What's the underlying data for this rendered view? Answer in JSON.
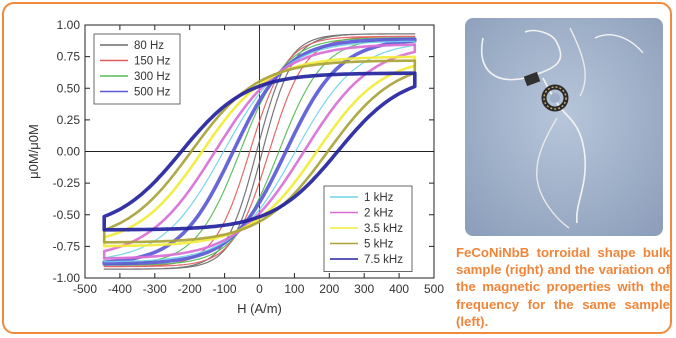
{
  "chart_data": {
    "type": "line",
    "xlabel": "H (A/m)",
    "ylabel": "μ0M/μ0M",
    "xlim": [
      -500,
      500
    ],
    "ylim": [
      -1.0,
      1.0
    ],
    "xticks": [
      -500,
      -400,
      -300,
      -200,
      -100,
      0,
      100,
      200,
      300,
      400,
      500
    ],
    "yticks": [
      1.0,
      0.75,
      0.5,
      0.25,
      0.0,
      -0.25,
      -0.5,
      -0.75,
      -1.0
    ],
    "ytick_labels": [
      "1.00",
      "0.75",
      "0.50",
      "0.25",
      "0.00",
      "-0.25",
      "-0.50",
      "-0.75",
      "-1.00"
    ],
    "grid": false,
    "legends": [
      {
        "placement": "top-left",
        "entries": [
          "80 Hz",
          "150 Hz",
          "300 Hz",
          "500 Hz"
        ]
      },
      {
        "placement": "bottom-right",
        "entries": [
          "1 kHz",
          "2 kHz",
          "3.5 kHz",
          "5 kHz",
          "7.5 kHz"
        ]
      }
    ],
    "series": [
      {
        "name": "80 Hz",
        "color": "#6b6b6b",
        "Hmax": 445,
        "Mmax": 0.93,
        "Hc": 10,
        "Mr": 0.1
      },
      {
        "name": "150 Hz",
        "color": "#e35a5a",
        "Hmax": 445,
        "Mmax": 0.91,
        "Hc": 35,
        "Mr": 0.28
      },
      {
        "name": "300 Hz",
        "color": "#56bb56",
        "Hmax": 445,
        "Mmax": 0.9,
        "Hc": 75,
        "Mr": 0.42
      },
      {
        "name": "500 Hz",
        "color": "#5a5ad6",
        "Hmax": 445,
        "Mmax": 0.89,
        "Hc": 110,
        "Mr": 0.46
      },
      {
        "name": "1 kHz",
        "color": "#6fd3e6",
        "Hmax": 445,
        "Mmax": 0.875,
        "Hc": 160,
        "Mr": 0.52
      },
      {
        "name": "2 kHz",
        "color": "#d96fd6",
        "Hmax": 445,
        "Mmax": 0.85,
        "Hc": 210,
        "Mr": 0.55
      },
      {
        "name": "3.5 kHz",
        "color": "#f2ec3a",
        "Hmax": 445,
        "Mmax": 0.75,
        "Hc": 265,
        "Mr": 0.58
      },
      {
        "name": "5 kHz",
        "color": "#a8a238",
        "Hmax": 445,
        "Mmax": 0.72,
        "Hc": 320,
        "Mr": 0.6
      },
      {
        "name": "7.5 kHz",
        "color": "#23239e",
        "Hmax": 445,
        "Mmax": 0.62,
        "Hc": 360,
        "Mr": 0.55
      }
    ]
  },
  "caption": "FeCoNiNbB torroidal shape bulk sample (right) and the variation of the magnetic properties with the frequency for the same sample (left).",
  "photo": {
    "background": "#9eb0c9"
  }
}
